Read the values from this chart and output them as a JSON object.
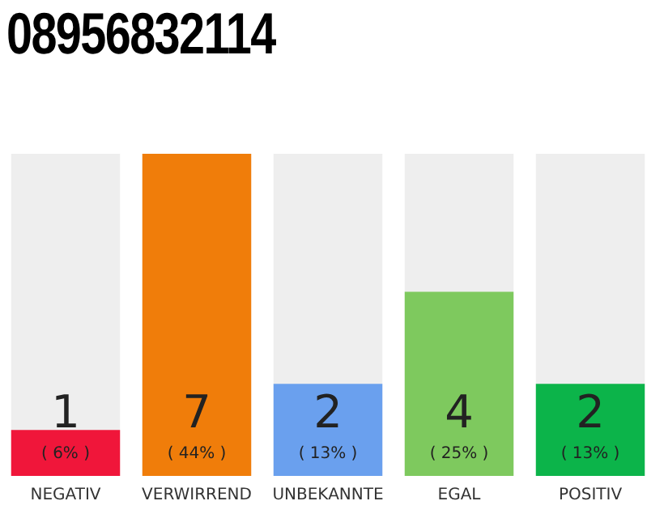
{
  "chart_data": {
    "type": "bar",
    "title": "08956832114",
    "categories": [
      "NEGATIV",
      "VERWIRREND",
      "UNBEKANNTE",
      "EGAL",
      "POSITIV"
    ],
    "values": [
      1,
      7,
      2,
      4,
      2
    ],
    "colors": [
      "#f0163a",
      "#f07d0a",
      "#6aa0ee",
      "#7ec95e",
      "#0cb44a"
    ],
    "value_labels": [
      "1\n( 6% )",
      "7\n( 44% )",
      "2\n( 13% )",
      "4\n( 25% )",
      "2\n( 13% )"
    ],
    "relative": false,
    "grid": false,
    "legend": false
  }
}
